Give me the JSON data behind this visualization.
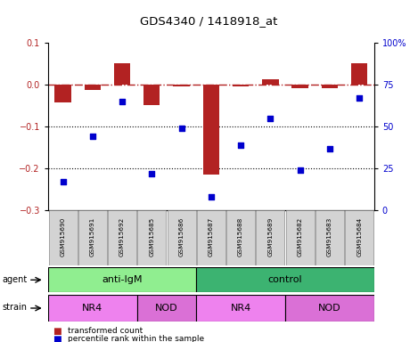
{
  "title": "GDS4340 / 1418918_at",
  "samples": [
    "GSM915690",
    "GSM915691",
    "GSM915692",
    "GSM915685",
    "GSM915686",
    "GSM915687",
    "GSM915688",
    "GSM915689",
    "GSM915682",
    "GSM915683",
    "GSM915684"
  ],
  "bar_values": [
    -0.042,
    -0.012,
    0.052,
    -0.048,
    -0.005,
    -0.215,
    -0.004,
    0.012,
    -0.008,
    -0.008,
    0.052
  ],
  "percentile_values": [
    17,
    44,
    65,
    22,
    49,
    8,
    39,
    55,
    24,
    37,
    67
  ],
  "ylim_left": [
    -0.3,
    0.1
  ],
  "ylim_right": [
    0,
    100
  ],
  "yticks_left": [
    -0.3,
    -0.2,
    -0.1,
    0.0,
    0.1
  ],
  "yticks_right": [
    0,
    25,
    50,
    75,
    100
  ],
  "ytick_labels_right": [
    "0",
    "25",
    "50",
    "75",
    "100%"
  ],
  "bar_color": "#B22222",
  "scatter_color": "#0000CD",
  "agent_labels": [
    {
      "label": "anti-IgM",
      "start": 0,
      "end": 5
    },
    {
      "label": "control",
      "start": 5,
      "end": 11
    }
  ],
  "agent_color_0": "#90EE90",
  "agent_color_1": "#3CB371",
  "strain_labels": [
    {
      "label": "NR4",
      "start": 0,
      "end": 3
    },
    {
      "label": "NOD",
      "start": 3,
      "end": 5
    },
    {
      "label": "NR4",
      "start": 5,
      "end": 8
    },
    {
      "label": "NOD",
      "start": 8,
      "end": 11
    }
  ],
  "strain_color_0": "#EE82EE",
  "strain_color_1": "#DA70D6",
  "agent_row_label": "agent",
  "strain_row_label": "strain",
  "legend_bar_label": "transformed count",
  "legend_scatter_label": "percentile rank within the sample",
  "plot_bg_color": "#ffffff"
}
